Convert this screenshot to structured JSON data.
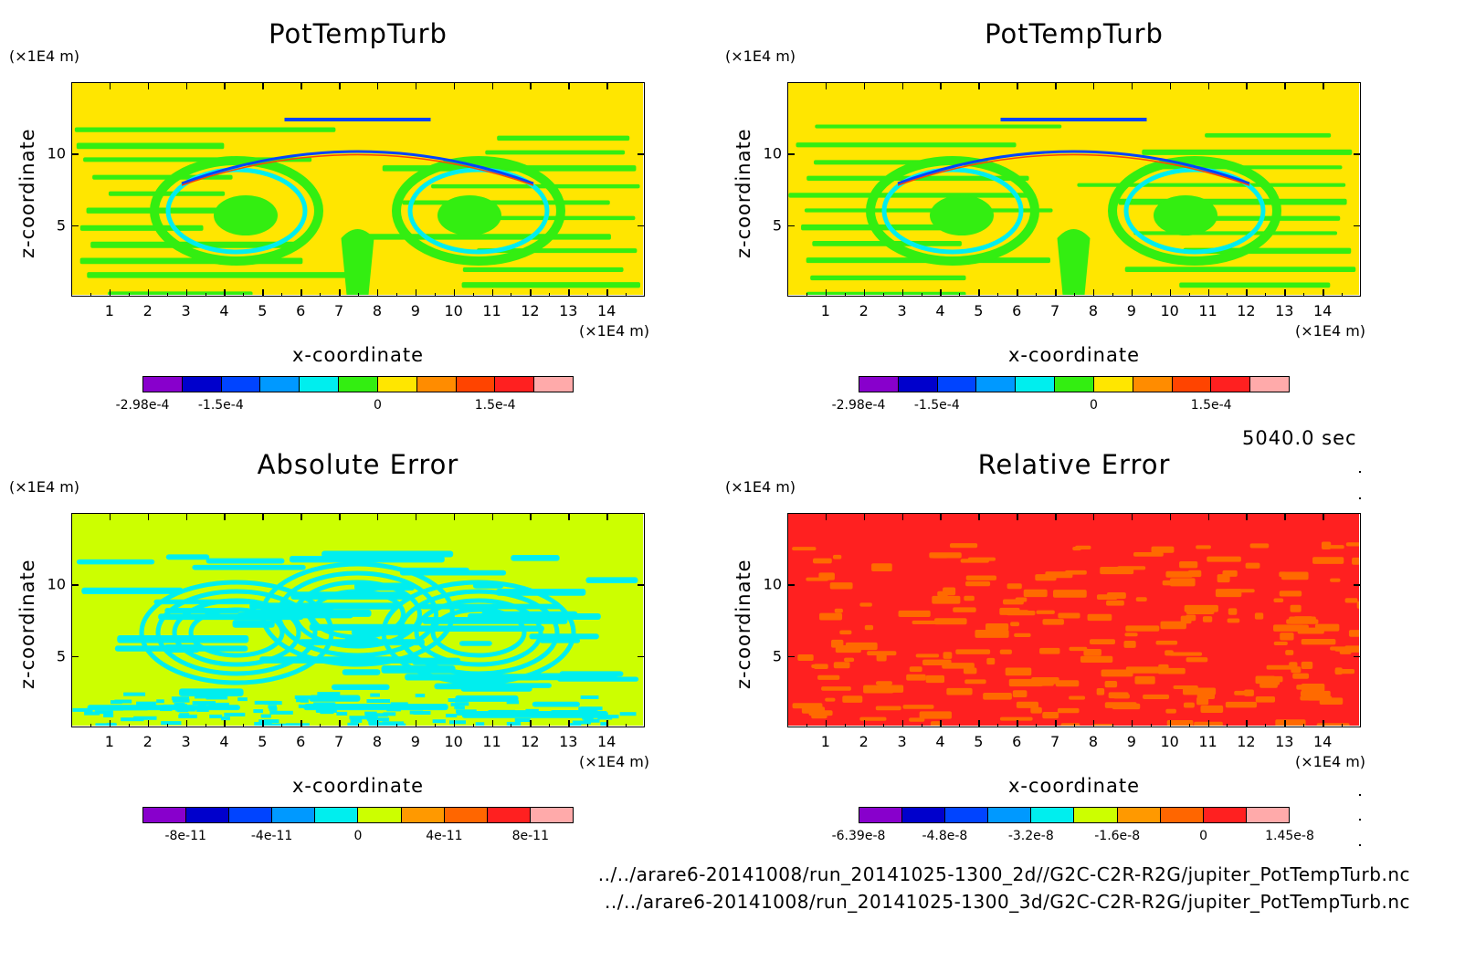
{
  "time_label": "5040.0 sec",
  "paths": [
    "../../arare6-20141008/run_20141025-1300_2d//G2C-C2R-R2G/jupiter_PotTempTurb.nc",
    "../../arare6-20141008/run_20141025-1300_3d/G2C-C2R-R2G/jupiter_PotTempTurb.nc"
  ],
  "colors": {
    "yellow": "#ffe600",
    "green": "#33ee11",
    "cyan": "#00eeee",
    "lime": "#ccff00",
    "red": "#ff2020",
    "orange_red": "#ff6a00"
  },
  "chart_data": [
    {
      "type": "heatmap",
      "title": "PotTempTurb",
      "xlabel": "x-coordinate",
      "ylabel": "z-coordinate",
      "x_unit": "(×1E4 m)",
      "y_unit": "(×1E4 m)",
      "xlim": [
        0,
        15
      ],
      "ylim": [
        0,
        15
      ],
      "x_ticks": [
        "1",
        "2",
        "3",
        "4",
        "5",
        "6",
        "7",
        "8",
        "9",
        "10",
        "11",
        "12",
        "13",
        "14"
      ],
      "y_ticks": [
        "5",
        "10"
      ],
      "colorbar": {
        "colors": [
          "#8800cc",
          "#0000cc",
          "#0044ff",
          "#0099ff",
          "#00eeee",
          "#33ee11",
          "#ffe600",
          "#ff8c00",
          "#ff4400",
          "#ff2020",
          "#ffaaaa"
        ],
        "labels": [
          "-2.98e-4",
          "-1.5e-4",
          "0",
          "1.5e-4"
        ]
      }
    },
    {
      "type": "heatmap",
      "title": "PotTempTurb",
      "xlabel": "x-coordinate",
      "ylabel": "z-coordinate",
      "x_unit": "(×1E4 m)",
      "y_unit": "(×1E4 m)",
      "xlim": [
        0,
        15
      ],
      "ylim": [
        0,
        15
      ],
      "x_ticks": [
        "1",
        "2",
        "3",
        "4",
        "5",
        "6",
        "7",
        "8",
        "9",
        "10",
        "11",
        "12",
        "13",
        "14"
      ],
      "y_ticks": [
        "5",
        "10"
      ],
      "colorbar": {
        "colors": [
          "#8800cc",
          "#0000cc",
          "#0044ff",
          "#0099ff",
          "#00eeee",
          "#33ee11",
          "#ffe600",
          "#ff8c00",
          "#ff4400",
          "#ff2020",
          "#ffaaaa"
        ],
        "labels": [
          "-2.98e-4",
          "-1.5e-4",
          "0",
          "1.5e-4"
        ]
      }
    },
    {
      "type": "heatmap",
      "title": "Absolute Error",
      "xlabel": "x-coordinate",
      "ylabel": "z-coordinate",
      "x_unit": "(×1E4 m)",
      "y_unit": "(×1E4 m)",
      "xlim": [
        0,
        15
      ],
      "ylim": [
        0,
        15
      ],
      "x_ticks": [
        "1",
        "2",
        "3",
        "4",
        "5",
        "6",
        "7",
        "8",
        "9",
        "10",
        "11",
        "12",
        "13",
        "14"
      ],
      "y_ticks": [
        "5",
        "10"
      ],
      "colorbar": {
        "colors": [
          "#8800cc",
          "#0000cc",
          "#0044ff",
          "#0099ff",
          "#00eeee",
          "#ccff00",
          "#ff9900",
          "#ff6600",
          "#ff2020",
          "#ffaaaa"
        ],
        "labels": [
          "-8e-11",
          "-4e-11",
          "0",
          "4e-11",
          "8e-11"
        ]
      }
    },
    {
      "type": "heatmap",
      "title": "Relative Error",
      "xlabel": "x-coordinate",
      "ylabel": "z-coordinate",
      "x_unit": "(×1E4 m)",
      "y_unit": "(×1E4 m)",
      "xlim": [
        0,
        15
      ],
      "ylim": [
        0,
        15
      ],
      "x_ticks": [
        "1",
        "2",
        "3",
        "4",
        "5",
        "6",
        "7",
        "8",
        "9",
        "10",
        "11",
        "12",
        "13",
        "14"
      ],
      "y_ticks": [
        "5",
        "10"
      ],
      "colorbar": {
        "colors": [
          "#8800cc",
          "#0000cc",
          "#0044ff",
          "#0099ff",
          "#00eeee",
          "#ccff00",
          "#ff9900",
          "#ff6600",
          "#ff2020",
          "#ffaaaa"
        ],
        "labels": [
          "-6.39e-8",
          "-4.8e-8",
          "-3.2e-8",
          "-1.6e-8",
          "0",
          "1.45e-8"
        ]
      }
    }
  ]
}
